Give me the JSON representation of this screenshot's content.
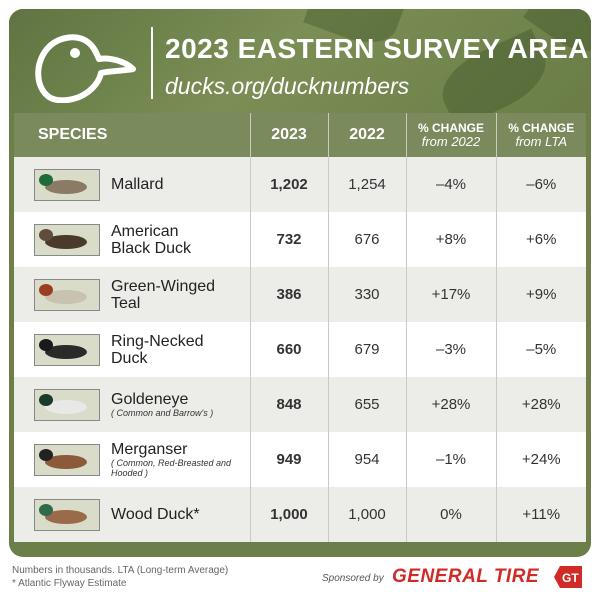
{
  "header": {
    "title": "2023 EASTERN SURVEY AREA",
    "url": "ducks.org/ducknumbers"
  },
  "columns": {
    "species": "SPECIES",
    "y2023": "2023",
    "y2022": "2022",
    "chg22_line1": "% CHANGE",
    "chg22_line2": "from 2022",
    "chglta_line1": "% CHANGE",
    "chglta_line2": "from LTA"
  },
  "chart_data": {
    "type": "table",
    "title": "2023 EASTERN SURVEY AREA",
    "rows": [
      {
        "species": "Mallard",
        "sub": "",
        "y2023": "1,202",
        "y2022": "1,254",
        "chg2022": "–4%",
        "chglta": "–6%",
        "colors": {
          "body": "#8a7a66",
          "head": "#1f6b3a"
        }
      },
      {
        "species": "American Black Duck",
        "sub": "",
        "y2023": "732",
        "y2022": "676",
        "chg2022": "+8%",
        "chglta": "+6%",
        "colors": {
          "body": "#4a3a2c",
          "head": "#5e4d3c"
        }
      },
      {
        "species": "Green-Winged Teal",
        "sub": "",
        "y2023": "386",
        "y2022": "330",
        "chg2022": "+17%",
        "chglta": "+9%",
        "colors": {
          "body": "#c8c2b0",
          "head": "#9a3e1f"
        }
      },
      {
        "species": "Ring-Necked Duck",
        "sub": "",
        "y2023": "660",
        "y2022": "679",
        "chg2022": "–3%",
        "chglta": "–5%",
        "colors": {
          "body": "#2a2a2a",
          "head": "#1a1a1a"
        }
      },
      {
        "species": "Goldeneye",
        "sub": "( Common and Barrow's )",
        "y2023": "848",
        "y2022": "655",
        "chg2022": "+28%",
        "chglta": "+28%",
        "colors": {
          "body": "#e8e8e8",
          "head": "#1b3a2c"
        }
      },
      {
        "species": "Merganser",
        "sub": "( Common, Red-Breasted and Hooded )",
        "y2023": "949",
        "y2022": "954",
        "chg2022": "–1%",
        "chglta": "+24%",
        "colors": {
          "body": "#8a5a3a",
          "head": "#222222"
        }
      },
      {
        "species": "Wood Duck*",
        "sub": "",
        "y2023": "1,000",
        "y2022": "1,000",
        "chg2022": "0%",
        "chglta": "+11%",
        "colors": {
          "body": "#9a6a4a",
          "head": "#2f6a4a"
        }
      }
    ]
  },
  "footer": {
    "note1": "Numbers in thousands. LTA (Long-term Average)",
    "note2": "* Atlantic Flyway Estimate",
    "sponsored": "Sponsored by",
    "brand": "GENERAL TIRE"
  },
  "colors": {
    "banner": "#6d7f49",
    "header_row": "#7a8a5d",
    "accent_2023": "#c06a21",
    "brand_red": "#d02b27"
  }
}
